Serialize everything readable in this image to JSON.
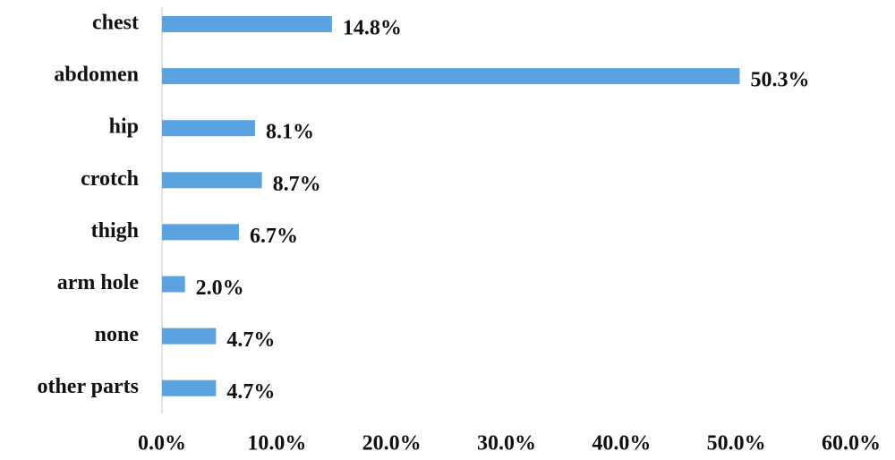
{
  "chart_data": {
    "type": "hbar",
    "categories": [
      "chest",
      "abdomen",
      "hip",
      "crotch",
      "thigh",
      "arm hole",
      "none",
      "other parts"
    ],
    "values": [
      14.8,
      50.3,
      8.1,
      8.7,
      6.7,
      2.0,
      4.7,
      4.7
    ],
    "value_labels": [
      "14.8%",
      "50.3%",
      "8.1%",
      "8.7%",
      "6.7%",
      "2.0%",
      "4.7%",
      "4.7%"
    ],
    "color": "#5aa3e0",
    "xlim": [
      0,
      60
    ],
    "xticks": [
      {
        "value": 0,
        "label": "0.0%"
      },
      {
        "value": 10,
        "label": "10.0%"
      },
      {
        "value": 20,
        "label": "20.0%"
      },
      {
        "value": 30,
        "label": "30.0%"
      },
      {
        "value": 40,
        "label": "40.0%"
      },
      {
        "value": 50,
        "label": "50.0%"
      },
      {
        "value": 60,
        "label": "60.0%"
      }
    ],
    "grid": false
  }
}
